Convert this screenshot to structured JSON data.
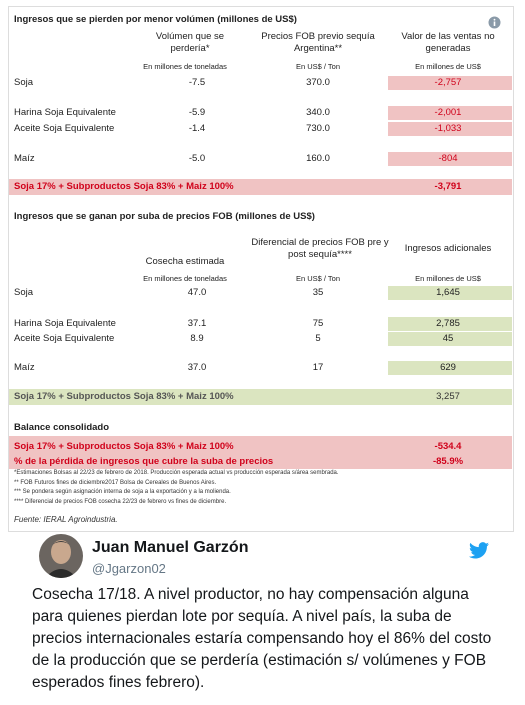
{
  "table": {
    "lost": {
      "title": "Ingresos que se pierden por menor volúmen (millones de US$)",
      "headers": [
        "Volúmen que se perdería*",
        "Precios FOB previo sequía Argentina**",
        "Valor de las ventas no generadas"
      ],
      "units": [
        "En millones de toneladas",
        "En US$ / Ton",
        "En millones de US$"
      ],
      "rows": [
        [
          "Soja",
          "-7.5",
          "370.0",
          "-2,757"
        ],
        [
          "Harina Soja Equivalente",
          "-5.9",
          "340.0",
          "-2,001"
        ],
        [
          "Aceite Soja Equivalente",
          "-1.4",
          "730.0",
          "-1,033"
        ],
        [
          "Maíz",
          "-5.0",
          "160.0",
          "-804"
        ]
      ],
      "total": [
        "Soja 17% + Subproductos Soja 83% + Maiz 100%",
        "-3,791"
      ]
    },
    "gained": {
      "title": "Ingresos que se ganan por suba de precios FOB (millones de US$)",
      "headers": [
        "Cosecha estimada",
        "Diferencial de precios FOB pre y post sequía****",
        "Ingresos adicionales"
      ],
      "units": [
        "En millones de toneladas",
        "En US$ / Ton",
        "En millones de US$"
      ],
      "rows": [
        [
          "Soja",
          "47.0",
          "35",
          "1,645"
        ],
        [
          "Harina Soja Equivalente",
          "37.1",
          "75",
          "2,785"
        ],
        [
          "Aceite Soja Equivalente",
          "8.9",
          "5",
          "45"
        ],
        [
          "Maíz",
          "37.0",
          "17",
          "629"
        ]
      ],
      "total": [
        "Soja 17% + Subproductos Soja 83% + Maiz 100%",
        "3,257"
      ]
    },
    "balance": {
      "title": "Balance consolidado",
      "rows": [
        [
          "Soja 17% + Subproductos Soja 83% + Maiz 100%",
          "-534.4"
        ],
        [
          "% de la pérdida de ingresos que cubre la suba de precios",
          "-85.9%"
        ]
      ]
    },
    "notes": [
      "*Estimaciones Bolsas al 22/23 de febrero de 2018. Producción esperada actual vs producción esperada s/área sembrada.",
      "** FOB Futuros fines de diciembre2017 Bolsa de Cereales de Buenos Aires.",
      "*** Se pondera según asignación interna de soja a la exportación y a la molienda.",
      "**** Diferencial de precios FOB cosecha 22/23 de febrero vs fines de diciembre."
    ],
    "source": "Fuente: IERAL Agroindustria."
  },
  "tweet": {
    "name": "Juan Manuel Garzón",
    "handle": "@Jgarzon02",
    "text": "Cosecha 17/18. A nivel productor, no hay compensación alguna para quienes pierdan lote por sequía. A nivel país, la suba de precios internacionales estaría compensando hoy el 86% del costo de la producción que se perdería (estimación s/ volúmenes y FOB esperados fines febrero)."
  }
}
